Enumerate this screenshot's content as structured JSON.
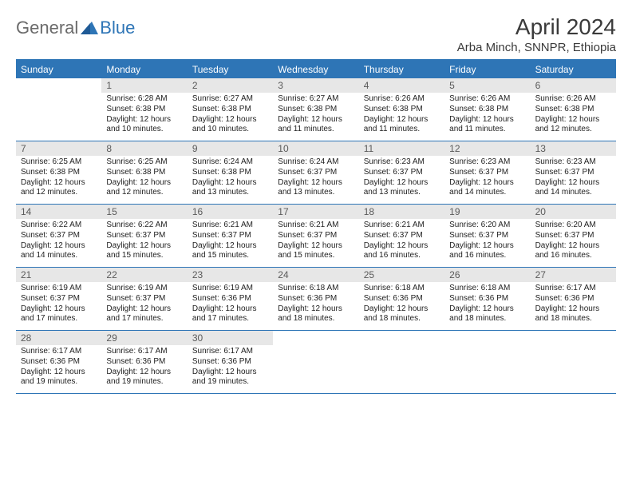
{
  "logo": {
    "text1": "General",
    "text2": "Blue"
  },
  "title": "April 2024",
  "location": "Arba Minch, SNNPR, Ethiopia",
  "colors": {
    "brand": "#2e75b6",
    "logo_gray": "#6b6b6b",
    "daynum_bg": "#e7e7e7",
    "text": "#222222",
    "title_color": "#3a3a3a",
    "white": "#ffffff"
  },
  "daysOfWeek": [
    "Sunday",
    "Monday",
    "Tuesday",
    "Wednesday",
    "Thursday",
    "Friday",
    "Saturday"
  ],
  "weeks": [
    [
      {
        "n": "",
        "sunrise": "",
        "sunset": "",
        "daylight": ""
      },
      {
        "n": "1",
        "sunrise": "6:28 AM",
        "sunset": "6:38 PM",
        "daylight": "12 hours and 10 minutes."
      },
      {
        "n": "2",
        "sunrise": "6:27 AM",
        "sunset": "6:38 PM",
        "daylight": "12 hours and 10 minutes."
      },
      {
        "n": "3",
        "sunrise": "6:27 AM",
        "sunset": "6:38 PM",
        "daylight": "12 hours and 11 minutes."
      },
      {
        "n": "4",
        "sunrise": "6:26 AM",
        "sunset": "6:38 PM",
        "daylight": "12 hours and 11 minutes."
      },
      {
        "n": "5",
        "sunrise": "6:26 AM",
        "sunset": "6:38 PM",
        "daylight": "12 hours and 11 minutes."
      },
      {
        "n": "6",
        "sunrise": "6:26 AM",
        "sunset": "6:38 PM",
        "daylight": "12 hours and 12 minutes."
      }
    ],
    [
      {
        "n": "7",
        "sunrise": "6:25 AM",
        "sunset": "6:38 PM",
        "daylight": "12 hours and 12 minutes."
      },
      {
        "n": "8",
        "sunrise": "6:25 AM",
        "sunset": "6:38 PM",
        "daylight": "12 hours and 12 minutes."
      },
      {
        "n": "9",
        "sunrise": "6:24 AM",
        "sunset": "6:38 PM",
        "daylight": "12 hours and 13 minutes."
      },
      {
        "n": "10",
        "sunrise": "6:24 AM",
        "sunset": "6:37 PM",
        "daylight": "12 hours and 13 minutes."
      },
      {
        "n": "11",
        "sunrise": "6:23 AM",
        "sunset": "6:37 PM",
        "daylight": "12 hours and 13 minutes."
      },
      {
        "n": "12",
        "sunrise": "6:23 AM",
        "sunset": "6:37 PM",
        "daylight": "12 hours and 14 minutes."
      },
      {
        "n": "13",
        "sunrise": "6:23 AM",
        "sunset": "6:37 PM",
        "daylight": "12 hours and 14 minutes."
      }
    ],
    [
      {
        "n": "14",
        "sunrise": "6:22 AM",
        "sunset": "6:37 PM",
        "daylight": "12 hours and 14 minutes."
      },
      {
        "n": "15",
        "sunrise": "6:22 AM",
        "sunset": "6:37 PM",
        "daylight": "12 hours and 15 minutes."
      },
      {
        "n": "16",
        "sunrise": "6:21 AM",
        "sunset": "6:37 PM",
        "daylight": "12 hours and 15 minutes."
      },
      {
        "n": "17",
        "sunrise": "6:21 AM",
        "sunset": "6:37 PM",
        "daylight": "12 hours and 15 minutes."
      },
      {
        "n": "18",
        "sunrise": "6:21 AM",
        "sunset": "6:37 PM",
        "daylight": "12 hours and 16 minutes."
      },
      {
        "n": "19",
        "sunrise": "6:20 AM",
        "sunset": "6:37 PM",
        "daylight": "12 hours and 16 minutes."
      },
      {
        "n": "20",
        "sunrise": "6:20 AM",
        "sunset": "6:37 PM",
        "daylight": "12 hours and 16 minutes."
      }
    ],
    [
      {
        "n": "21",
        "sunrise": "6:19 AM",
        "sunset": "6:37 PM",
        "daylight": "12 hours and 17 minutes."
      },
      {
        "n": "22",
        "sunrise": "6:19 AM",
        "sunset": "6:37 PM",
        "daylight": "12 hours and 17 minutes."
      },
      {
        "n": "23",
        "sunrise": "6:19 AM",
        "sunset": "6:36 PM",
        "daylight": "12 hours and 17 minutes."
      },
      {
        "n": "24",
        "sunrise": "6:18 AM",
        "sunset": "6:36 PM",
        "daylight": "12 hours and 18 minutes."
      },
      {
        "n": "25",
        "sunrise": "6:18 AM",
        "sunset": "6:36 PM",
        "daylight": "12 hours and 18 minutes."
      },
      {
        "n": "26",
        "sunrise": "6:18 AM",
        "sunset": "6:36 PM",
        "daylight": "12 hours and 18 minutes."
      },
      {
        "n": "27",
        "sunrise": "6:17 AM",
        "sunset": "6:36 PM",
        "daylight": "12 hours and 18 minutes."
      }
    ],
    [
      {
        "n": "28",
        "sunrise": "6:17 AM",
        "sunset": "6:36 PM",
        "daylight": "12 hours and 19 minutes."
      },
      {
        "n": "29",
        "sunrise": "6:17 AM",
        "sunset": "6:36 PM",
        "daylight": "12 hours and 19 minutes."
      },
      {
        "n": "30",
        "sunrise": "6:17 AM",
        "sunset": "6:36 PM",
        "daylight": "12 hours and 19 minutes."
      },
      {
        "n": "",
        "sunrise": "",
        "sunset": "",
        "daylight": ""
      },
      {
        "n": "",
        "sunrise": "",
        "sunset": "",
        "daylight": ""
      },
      {
        "n": "",
        "sunrise": "",
        "sunset": "",
        "daylight": ""
      },
      {
        "n": "",
        "sunrise": "",
        "sunset": "",
        "daylight": ""
      }
    ]
  ],
  "labels": {
    "sunrise_prefix": "Sunrise: ",
    "sunset_prefix": "Sunset: ",
    "daylight_prefix": "Daylight: "
  }
}
